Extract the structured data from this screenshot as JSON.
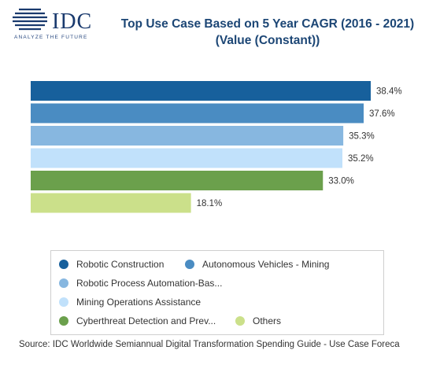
{
  "logo": {
    "name": "IDC",
    "tagline": "ANALYZE THE FUTURE"
  },
  "chart_data": {
    "type": "bar",
    "orientation": "horizontal",
    "title": "Top Use Case Based on 5 Year CAGR (2016 - 2021) (Value (Constant))",
    "categories": [
      "Robotic Construction",
      "Autonomous Vehicles - Mining",
      "Robotic Process Automation-Bas...",
      "Mining Operations Assistance",
      "Cyberthreat Detection and Prev...",
      "Others"
    ],
    "values": [
      38.4,
      37.6,
      35.3,
      35.2,
      33.0,
      18.1
    ],
    "value_labels": [
      "38.4%",
      "37.6%",
      "35.3%",
      "35.2%",
      "33.0%",
      "18.1%"
    ],
    "colors": [
      "#17609c",
      "#4a8cc2",
      "#87b7e0",
      "#c1e1fb",
      "#6ba04c",
      "#cbe08a"
    ],
    "xlim": [
      0,
      40
    ],
    "legend": {
      "position": "bottom"
    },
    "grid": false
  },
  "source": "Source: IDC Worldwide Semiannual Digital Transformation Spending Guide - Use Case Foreca"
}
